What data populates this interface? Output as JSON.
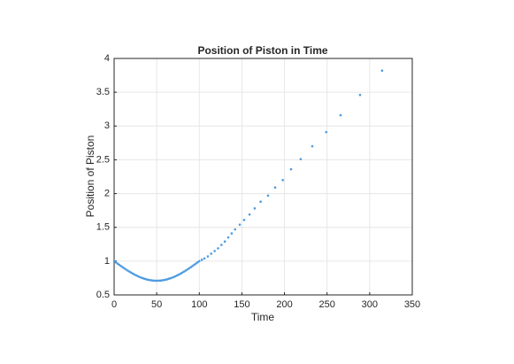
{
  "chart_data": {
    "type": "scatter",
    "title": "Position of Piston in Time",
    "xlabel": "Time",
    "ylabel": "Position of Piston",
    "x": [
      0,
      2,
      4,
      6,
      8,
      10,
      12,
      14,
      16,
      18,
      20,
      22,
      24,
      26,
      28,
      30,
      32,
      34,
      36,
      38,
      40,
      42,
      44,
      46,
      48,
      50,
      52,
      54,
      56,
      58,
      60,
      62,
      64,
      66,
      68,
      70,
      72,
      74,
      76,
      78,
      80,
      82,
      84,
      86,
      88,
      90,
      92,
      94,
      96,
      98,
      100,
      103,
      106,
      110,
      114,
      118,
      122,
      126,
      130,
      134,
      138,
      142,
      147.5,
      152.6,
      159,
      165,
      172,
      180.7,
      189,
      198,
      207.7,
      219,
      232.6,
      249,
      265.8,
      288.7,
      314.6
    ],
    "values": [
      1,
      0.982,
      0.964,
      0.946,
      0.928,
      0.91,
      0.893,
      0.877,
      0.86,
      0.845,
      0.83,
      0.815,
      0.801,
      0.789,
      0.777,
      0.765,
      0.755,
      0.746,
      0.738,
      0.73,
      0.724,
      0.719,
      0.715,
      0.712,
      0.711,
      0.71,
      0.711,
      0.712,
      0.715,
      0.719,
      0.724,
      0.73,
      0.738,
      0.746,
      0.755,
      0.765,
      0.777,
      0.789,
      0.801,
      0.815,
      0.83,
      0.845,
      0.86,
      0.877,
      0.893,
      0.91,
      0.928,
      0.946,
      0.964,
      0.982,
      1,
      1.02,
      1.04,
      1.07,
      1.11,
      1.15,
      1.19,
      1.24,
      1.29,
      1.35,
      1.41,
      1.47,
      1.54,
      1.61,
      1.69,
      1.78,
      1.88,
      1.97,
      2.09,
      2.2,
      2.36,
      2.51,
      2.7,
      2.91,
      3.16,
      3.46,
      3.82
    ],
    "color": "#4d9be0",
    "xlim": [
      0,
      350
    ],
    "xticks": [
      0,
      50,
      100,
      150,
      200,
      250,
      300,
      350
    ],
    "ylim": [
      0.5,
      4
    ],
    "yticks": [
      0.5,
      1,
      1.5,
      2,
      2.5,
      3,
      3.5,
      4
    ],
    "grid": true
  }
}
